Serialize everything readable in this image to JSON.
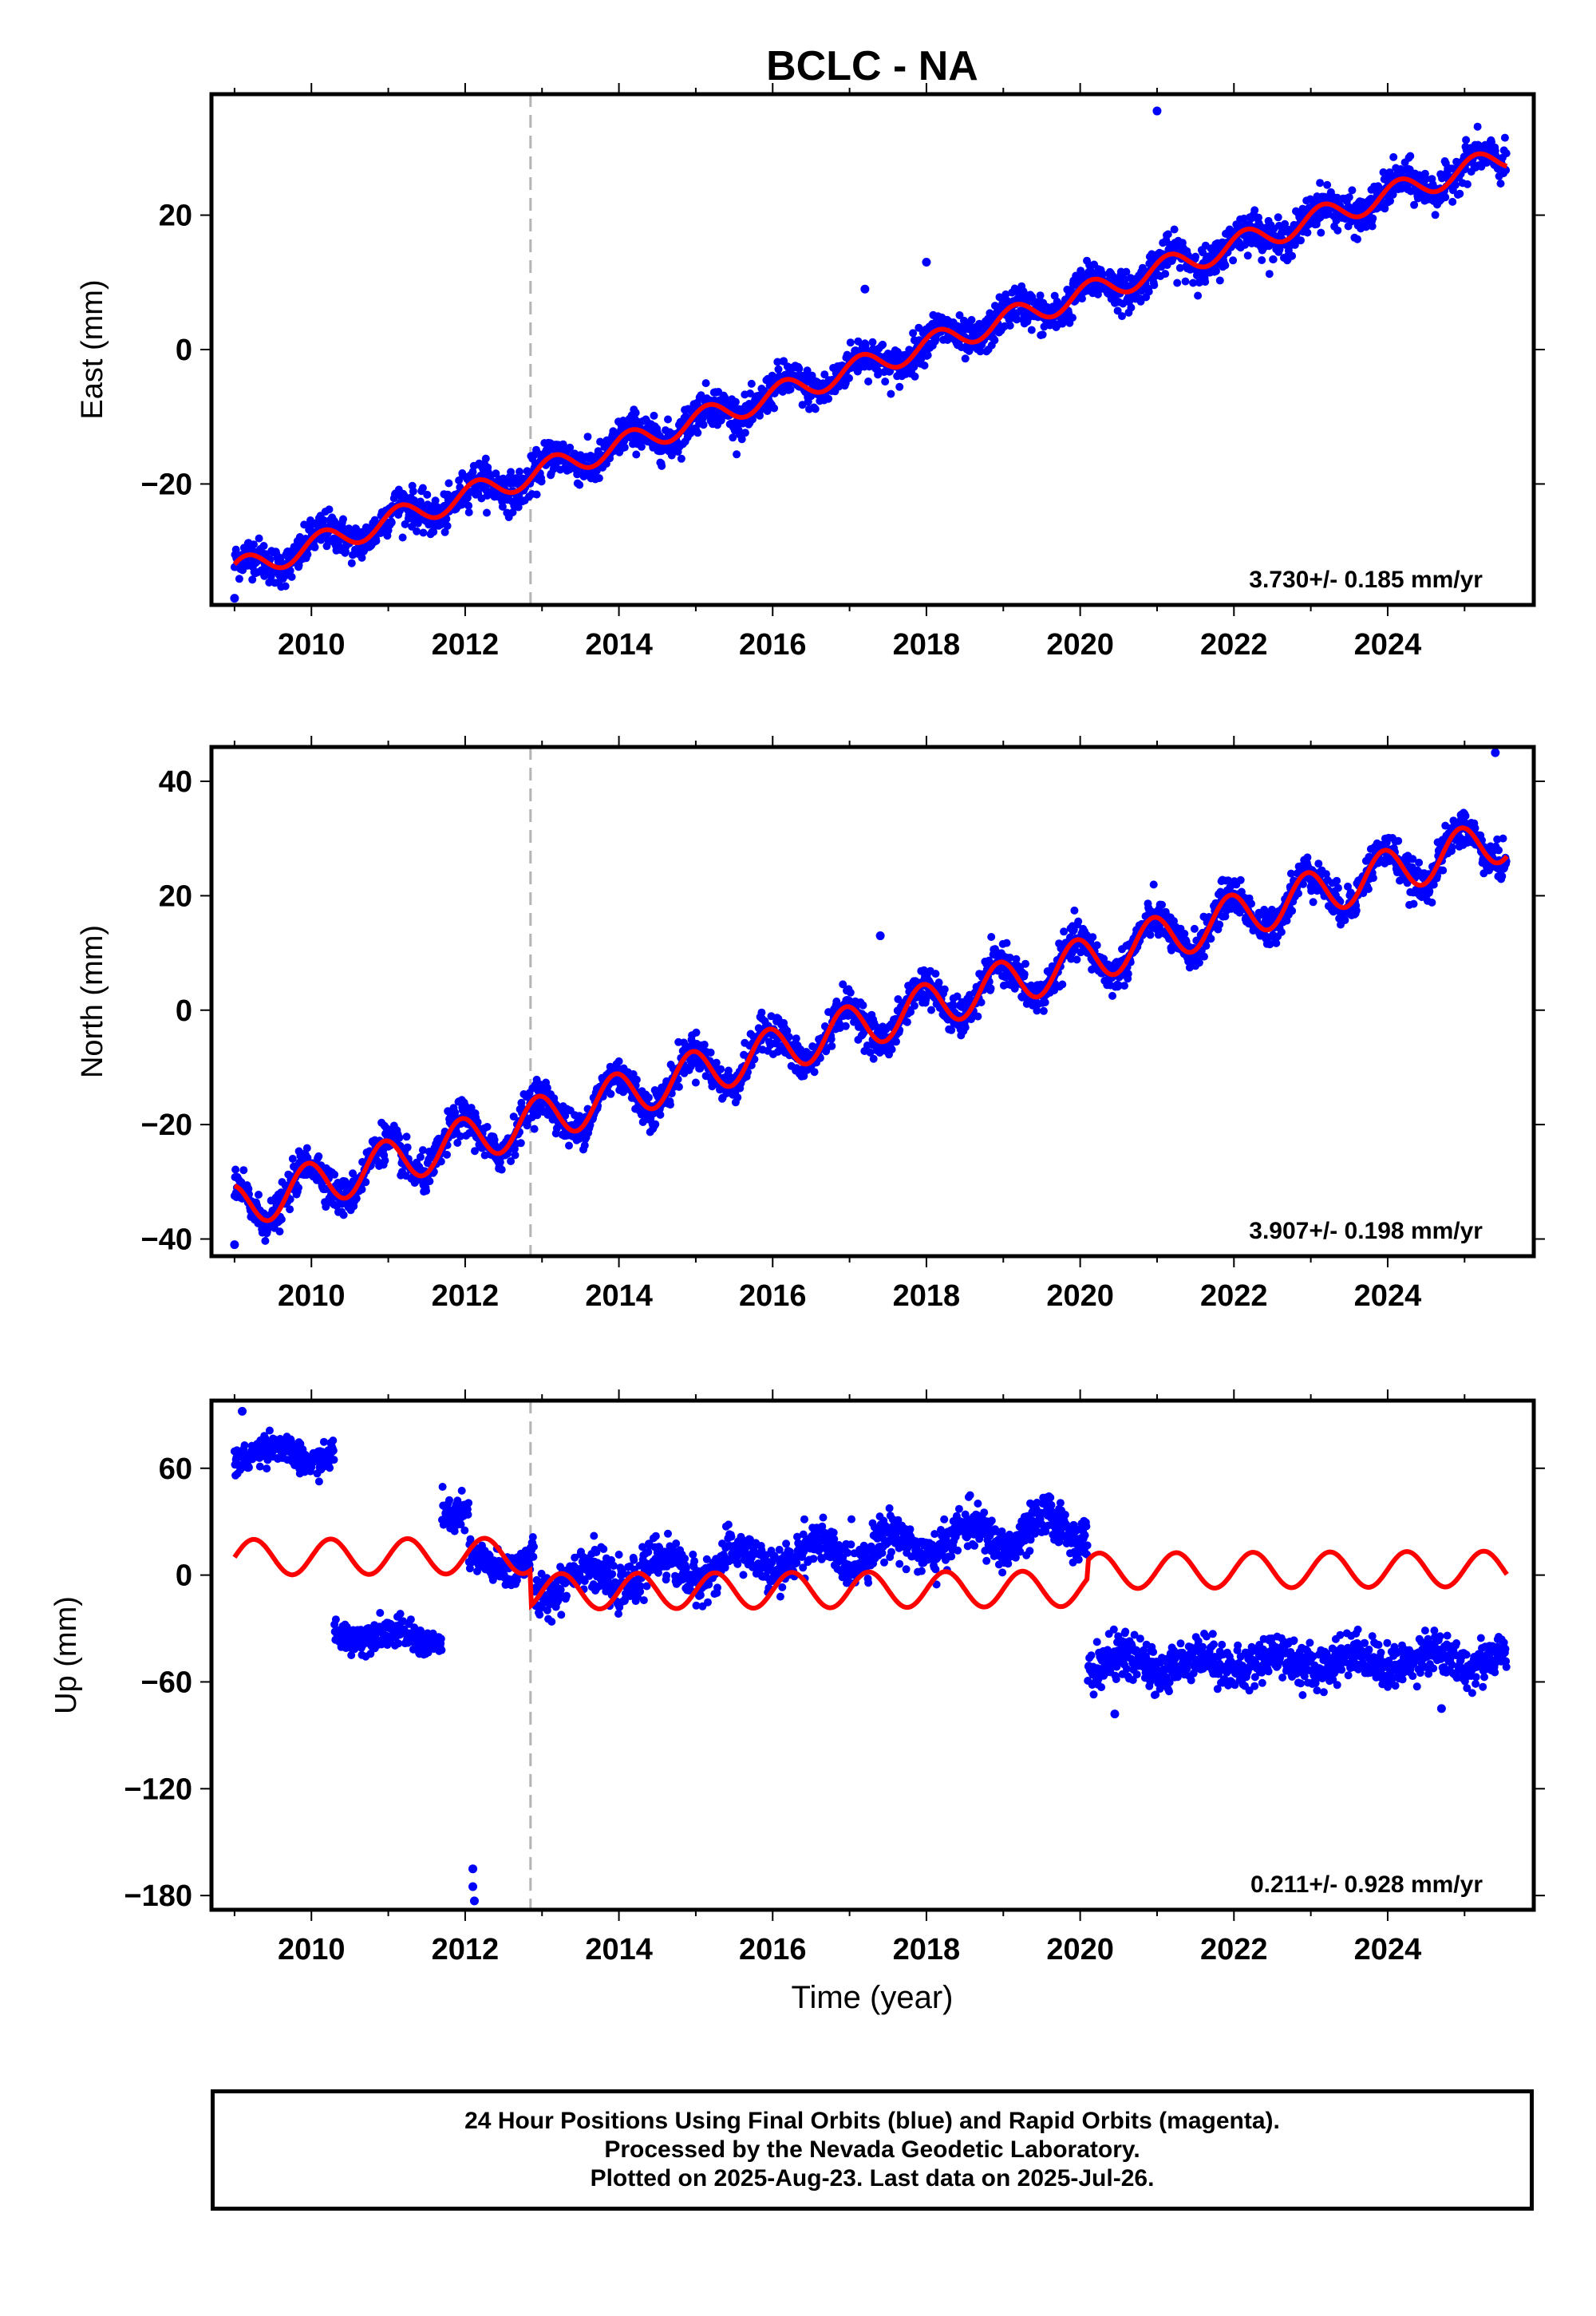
{
  "chart_data": {
    "type": "scatter",
    "title": "BCLC - NA",
    "xlabel": "Time (year)",
    "xlim": [
      2008.7,
      2025.9
    ],
    "xticks": [
      2010,
      2012,
      2014,
      2016,
      2018,
      2020,
      2022,
      2024
    ],
    "event_line_x": 2012.85,
    "colors": {
      "points": "#0000ff",
      "model": "#ff0000",
      "event_line": "#b4b4b4"
    },
    "panels": [
      {
        "name": "east",
        "ylabel": "East (mm)",
        "ylim": [
          -38,
          38
        ],
        "yticks": [
          -20,
          0,
          20
        ],
        "rate_text": "3.730+/- 0.185 mm/yr",
        "segments": [
          {
            "x_start": 2009.0,
            "x_end": 2025.55,
            "offset": -33.0,
            "rate": 3.73,
            "amplitude": 1.8,
            "phase": 0.1,
            "scatter": 1.4
          }
        ],
        "model_line": {
          "x_start": 2009.0,
          "x_end": 2025.55,
          "offset": -33.0,
          "rate": 3.73,
          "amplitude": 1.8,
          "phase": 0.1
        },
        "outliers": [
          {
            "x": 2021.0,
            "y": 35.5
          },
          {
            "x": 2009.0,
            "y": -37
          },
          {
            "x": 2017.2,
            "y": 9
          },
          {
            "x": 2018.0,
            "y": 13
          }
        ]
      },
      {
        "name": "north",
        "ylabel": "North (mm)",
        "ylim": [
          -43,
          46
        ],
        "yticks": [
          -40,
          -20,
          0,
          20,
          40
        ],
        "rate_text": "3.907+/- 0.198 mm/yr",
        "segments": [
          {
            "x_start": 2009.0,
            "x_end": 2025.55,
            "offset": -34.5,
            "rate": 3.907,
            "amplitude": 4.0,
            "phase": 0.3,
            "scatter": 1.6
          }
        ],
        "model_line": {
          "x_start": 2009.0,
          "x_end": 2025.55,
          "offset": -34.5,
          "rate": 3.907,
          "amplitude": 4.0,
          "phase": 0.3
        },
        "outliers": [
          {
            "x": 2009.0,
            "y": -41
          },
          {
            "x": 2025.4,
            "y": 45
          },
          {
            "x": 2017.4,
            "y": 13
          }
        ]
      },
      {
        "name": "up",
        "ylabel": "Up (mm)",
        "ylim": [
          -188,
          98
        ],
        "yticks": [
          -180,
          -120,
          -60,
          0,
          60
        ],
        "rate_text": "0.211+/- 0.928 mm/yr",
        "segments": [
          {
            "x_start": 2009.0,
            "x_end": 2010.3,
            "offset": 68.0,
            "rate": 0.0,
            "amplitude": 5.0,
            "phase": 0.75,
            "scatter": 4.0
          },
          {
            "x_start": 2010.3,
            "x_end": 2011.7,
            "offset": -32.0,
            "rate": -3.0,
            "amplitude": 3.0,
            "phase": 0.2,
            "scatter": 4.0
          },
          {
            "x_start": 2011.7,
            "x_end": 2012.05,
            "offset": 35.0,
            "rate": 0.0,
            "amplitude": 2.0,
            "phase": 0.0,
            "scatter": 5.0
          },
          {
            "x_start": 2012.05,
            "x_end": 2012.9,
            "offset": 5.0,
            "rate": 5.0,
            "amplitude": 5.0,
            "phase": 0.2,
            "scatter": 5.0
          },
          {
            "x_start": 2012.9,
            "x_end": 2020.1,
            "offset": -5.0,
            "rate": 4.5,
            "amplitude": 8.0,
            "phase": 0.7,
            "scatter": 6.0
          },
          {
            "x_start": 2020.1,
            "x_end": 2025.55,
            "offset": -50.0,
            "rate": 0.6,
            "amplitude": 5.0,
            "phase": 0.7,
            "scatter": 6.0
          }
        ],
        "model_line": {
          "x_start": 2009.0,
          "x_end": 2025.55,
          "offset": 10.0,
          "rate": 0.211,
          "amplitude": 10.0,
          "phase": 0.0,
          "steps": [
            {
              "x": 2012.85,
              "delta": -20.0
            },
            {
              "x": 2020.1,
              "delta": 10.0
            }
          ]
        },
        "outliers": [
          {
            "x": 2009.1,
            "y": 92
          },
          {
            "x": 2012.1,
            "y": -175
          },
          {
            "x": 2012.1,
            "y": -165
          },
          {
            "x": 2012.12,
            "y": -183
          },
          {
            "x": 2020.45,
            "y": -78
          },
          {
            "x": 2024.7,
            "y": -75
          }
        ]
      }
    ],
    "footer_lines": [
      "24 Hour Positions Using Final Orbits (blue) and Rapid Orbits (magenta).",
      "Processed by the Nevada Geodetic Laboratory.",
      "Plotted on 2025-Aug-23. Last data on 2025-Jul-26."
    ]
  }
}
